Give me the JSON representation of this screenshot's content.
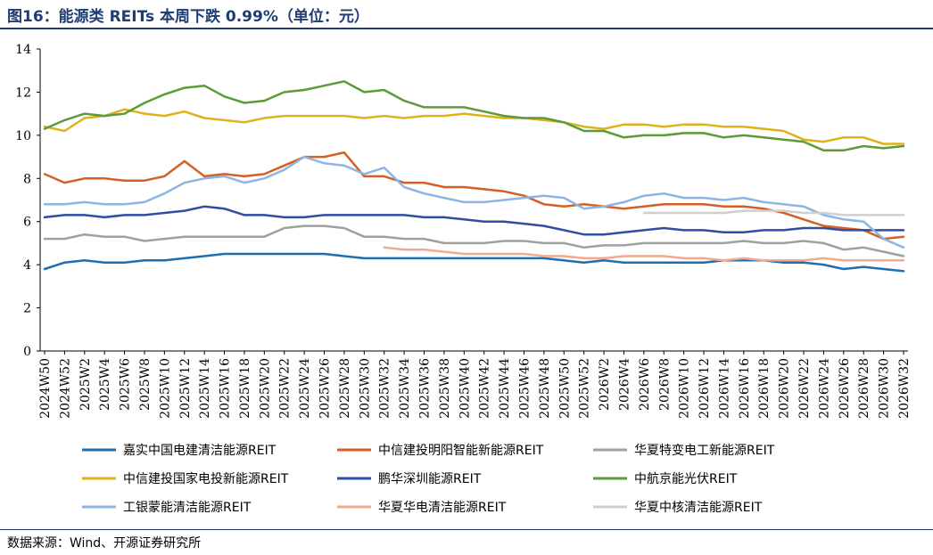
{
  "title": "图16：能源类 REITs 本周下跌 0.99%（单位：元）",
  "source": "数据来源：Wind、开源证券研究所",
  "chart_data": {
    "type": "line",
    "title": "图16：能源类 REITs 本周下跌 0.99%（单位：元）",
    "xlabel": "",
    "ylabel": "",
    "ylim": [
      0,
      14
    ],
    "yticks": [
      0,
      2,
      4,
      6,
      8,
      10,
      12,
      14
    ],
    "grid": false,
    "legend_position": "bottom",
    "x": [
      "2024W50",
      "2024W52",
      "2025W2",
      "2025W4",
      "2025W6",
      "2025W8",
      "2025W10",
      "2025W12",
      "2025W14",
      "2025W16",
      "2025W18",
      "2025W20",
      "2025W22",
      "2025W24",
      "2025W26",
      "2025W28",
      "2025W30",
      "2025W32",
      "2025W34",
      "2025W36",
      "2025W38",
      "2025W40",
      "2025W42",
      "2025W44",
      "2025W46",
      "2025W48",
      "2025W50",
      "2025W52",
      "2026W2",
      "2026W4",
      "2026W6",
      "2026W8",
      "2026W10",
      "2026W12",
      "2026W14",
      "2026W16",
      "2026W18",
      "2026W20",
      "2026W22",
      "2026W24",
      "2026W26",
      "2026W28",
      "2026W30",
      "2026W32"
    ],
    "series": [
      {
        "name": "嘉实中国电建清洁能源REIT",
        "color": "#1e6fb0",
        "values": [
          3.8,
          4.1,
          4.2,
          4.1,
          4.1,
          4.2,
          4.2,
          4.3,
          4.4,
          4.5,
          4.5,
          4.5,
          4.5,
          4.5,
          4.5,
          4.4,
          4.3,
          4.3,
          4.3,
          4.3,
          4.3,
          4.3,
          4.3,
          4.3,
          4.3,
          4.3,
          4.2,
          4.1,
          4.2,
          4.1,
          4.1,
          4.1,
          4.1,
          4.1,
          4.2,
          4.2,
          4.2,
          4.1,
          4.1,
          4.0,
          3.8,
          3.9,
          3.8,
          3.7
        ]
      },
      {
        "name": "中信建投明阳智能新能源REIT",
        "color": "#d45f27",
        "values": [
          8.2,
          7.8,
          8.0,
          8.0,
          7.9,
          7.9,
          8.1,
          8.8,
          8.1,
          8.2,
          8.1,
          8.2,
          8.6,
          9.0,
          9.0,
          9.2,
          8.1,
          8.1,
          7.8,
          7.8,
          7.6,
          7.6,
          7.5,
          7.4,
          7.2,
          6.8,
          6.7,
          6.8,
          6.7,
          6.6,
          6.7,
          6.8,
          6.8,
          6.8,
          6.7,
          6.7,
          6.6,
          6.4,
          6.1,
          5.8,
          5.7,
          5.6,
          5.2,
          5.3
        ]
      },
      {
        "name": "华夏特变电工新能源REIT",
        "color": "#a0a0a0",
        "values": [
          5.2,
          5.2,
          5.4,
          5.3,
          5.3,
          5.1,
          5.2,
          5.3,
          5.3,
          5.3,
          5.3,
          5.3,
          5.7,
          5.8,
          5.8,
          5.7,
          5.3,
          5.3,
          5.2,
          5.2,
          5.0,
          5.0,
          5.0,
          5.1,
          5.1,
          5.0,
          5.0,
          4.8,
          4.9,
          4.9,
          5.0,
          5.0,
          5.0,
          5.0,
          5.0,
          5.1,
          5.0,
          5.0,
          5.1,
          5.0,
          4.7,
          4.8,
          4.6,
          4.4
        ]
      },
      {
        "name": "中信建投国家电投新能源REIT",
        "color": "#dfb21a",
        "values": [
          10.4,
          10.2,
          10.8,
          10.9,
          11.2,
          11.0,
          10.9,
          11.1,
          10.8,
          10.7,
          10.6,
          10.8,
          10.9,
          10.9,
          10.9,
          10.9,
          10.8,
          10.9,
          10.8,
          10.9,
          10.9,
          11.0,
          10.9,
          10.8,
          10.8,
          10.7,
          10.6,
          10.4,
          10.3,
          10.5,
          10.5,
          10.4,
          10.5,
          10.5,
          10.4,
          10.4,
          10.3,
          10.2,
          9.8,
          9.7,
          9.9,
          9.9,
          9.6,
          9.6
        ]
      },
      {
        "name": "鹏华深圳能源REIT",
        "color": "#2f4da3",
        "values": [
          6.2,
          6.3,
          6.3,
          6.2,
          6.3,
          6.3,
          6.4,
          6.5,
          6.7,
          6.6,
          6.3,
          6.3,
          6.2,
          6.2,
          6.3,
          6.3,
          6.3,
          6.3,
          6.3,
          6.2,
          6.2,
          6.1,
          6.0,
          6.0,
          5.9,
          5.8,
          5.6,
          5.4,
          5.4,
          5.5,
          5.6,
          5.7,
          5.6,
          5.6,
          5.5,
          5.5,
          5.6,
          5.6,
          5.7,
          5.7,
          5.6,
          5.6,
          5.6,
          5.6
        ]
      },
      {
        "name": "中航京能光伏REIT",
        "color": "#5c9b38",
        "values": [
          10.3,
          10.7,
          11.0,
          10.9,
          11.0,
          11.5,
          11.9,
          12.2,
          12.3,
          11.8,
          11.5,
          11.6,
          12.0,
          12.1,
          12.3,
          12.5,
          12.0,
          12.1,
          11.6,
          11.3,
          11.3,
          11.3,
          11.1,
          10.9,
          10.8,
          10.8,
          10.6,
          10.2,
          10.2,
          9.9,
          10.0,
          10.0,
          10.1,
          10.1,
          9.9,
          10.0,
          9.9,
          9.8,
          9.7,
          9.3,
          9.3,
          9.5,
          9.4,
          9.5
        ]
      },
      {
        "name": "工银蒙能清洁能源REIT",
        "color": "#8db4e2",
        "values": [
          6.8,
          6.8,
          6.9,
          6.8,
          6.8,
          6.9,
          7.3,
          7.8,
          8.0,
          8.1,
          7.8,
          8.0,
          8.4,
          9.0,
          8.7,
          8.6,
          8.2,
          8.5,
          7.6,
          7.3,
          7.1,
          6.9,
          6.9,
          7.0,
          7.1,
          7.2,
          7.1,
          6.6,
          6.7,
          6.9,
          7.2,
          7.3,
          7.1,
          7.1,
          7.0,
          7.1,
          6.9,
          6.8,
          6.7,
          6.3,
          6.1,
          6.0,
          5.2,
          4.8
        ]
      },
      {
        "name": "华夏华电清洁能源REIT",
        "color": "#f2a98e",
        "values": [
          null,
          null,
          null,
          null,
          null,
          null,
          null,
          null,
          null,
          null,
          null,
          null,
          null,
          null,
          null,
          null,
          null,
          4.8,
          4.7,
          4.7,
          4.6,
          4.5,
          4.5,
          4.5,
          4.5,
          4.4,
          4.4,
          4.3,
          4.3,
          4.4,
          4.4,
          4.4,
          4.3,
          4.3,
          4.2,
          4.3,
          4.2,
          4.2,
          4.2,
          4.3,
          4.2,
          4.2,
          4.2,
          4.2
        ]
      },
      {
        "name": "华夏中核清洁能源REIT",
        "color": "#cfcfcf",
        "values": [
          null,
          null,
          null,
          null,
          null,
          null,
          null,
          null,
          null,
          null,
          null,
          null,
          null,
          null,
          null,
          null,
          null,
          null,
          null,
          null,
          null,
          null,
          null,
          null,
          null,
          null,
          null,
          null,
          null,
          null,
          6.4,
          6.4,
          6.4,
          6.4,
          6.4,
          6.5,
          6.5,
          6.5,
          6.4,
          6.4,
          6.3,
          6.3,
          6.3,
          6.3
        ]
      }
    ]
  }
}
